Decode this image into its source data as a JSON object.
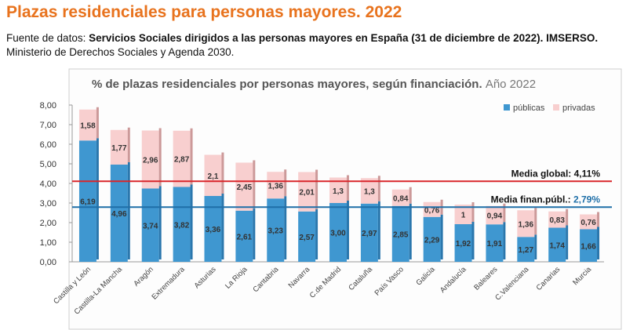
{
  "header": {
    "title": "Plazas residenciales para personas mayores. 2022",
    "source_prefix": "Fuente de datos: ",
    "source_bold": "Servicios Sociales dirigidos a las personas mayores en España (31 de diciembre de 2022). IMSERSO.",
    "source_rest": " Ministerio de Derechos Sociales y Agenda 2030."
  },
  "chart_data": {
    "type": "stacked_bar",
    "title": "% de plazas residenciales por personas mayores, según financiación.",
    "title_suffix": "Año 2022",
    "categories": [
      "Castilla y León",
      "Castilla-La Mancha",
      "Aragón",
      "Extremadura",
      "Asturias",
      "La Rioja",
      "Cantabria",
      "Navarra",
      "C.de Madrid",
      "Cataluña",
      "País Vasco",
      "Galicia",
      "Andalucía",
      "Baleares",
      "C.Valenciana",
      "Canarias",
      "Murcia"
    ],
    "series": [
      {
        "name": "públicas",
        "color": "#3f97d0",
        "values": [
          6.19,
          4.96,
          3.74,
          3.82,
          3.36,
          2.61,
          3.23,
          2.57,
          3.0,
          2.97,
          2.85,
          2.29,
          1.92,
          1.91,
          1.27,
          1.74,
          1.66
        ],
        "value_labels": [
          "6,19",
          "4,96",
          "3,74",
          "3,82",
          "3,36",
          "2,61",
          "3,23",
          "2,57",
          "3,00",
          "2,97",
          "2,85",
          "2,29",
          "1,92",
          "1,91",
          "1,27",
          "1,74",
          "1,66"
        ]
      },
      {
        "name": "privadas",
        "color": "#f8cfcf",
        "values": [
          1.58,
          1.77,
          2.96,
          2.87,
          2.1,
          2.45,
          1.36,
          2.01,
          1.3,
          1.3,
          0.84,
          0.76,
          1,
          0.94,
          1.36,
          0.83,
          0.76
        ],
        "value_labels": [
          "1,58",
          "1,77",
          "2,96",
          "2,87",
          "2,1",
          "2,45",
          "1,36",
          "2,01",
          "1,3",
          "1,3",
          "0,84",
          "0,76",
          "1",
          "0,94",
          "1,36",
          "0,83",
          "0,76"
        ]
      }
    ],
    "ylim": [
      0,
      8
    ],
    "yticks": [
      {
        "value": 0,
        "label": "0,00"
      },
      {
        "value": 1,
        "label": "1,00"
      },
      {
        "value": 2,
        "label": "2,00"
      },
      {
        "value": 3,
        "label": "3,00"
      },
      {
        "value": 4,
        "label": "4,00"
      },
      {
        "value": 5,
        "label": "5,00"
      },
      {
        "value": 6,
        "label": "6,00"
      },
      {
        "value": 7,
        "label": "7,00"
      },
      {
        "value": 8,
        "label": "8,00"
      }
    ],
    "legend": "top-right",
    "reference_lines": [
      {
        "label": "Media global: ",
        "value": 4.11,
        "value_label": "4,11%",
        "color": "#d9262b",
        "label_value_color": "#111111"
      },
      {
        "label": "Media finan.públ.: ",
        "value": 2.79,
        "value_label": "2,79%",
        "color": "#1f6fa8",
        "label_value_color": "#1f6fa8"
      }
    ]
  }
}
